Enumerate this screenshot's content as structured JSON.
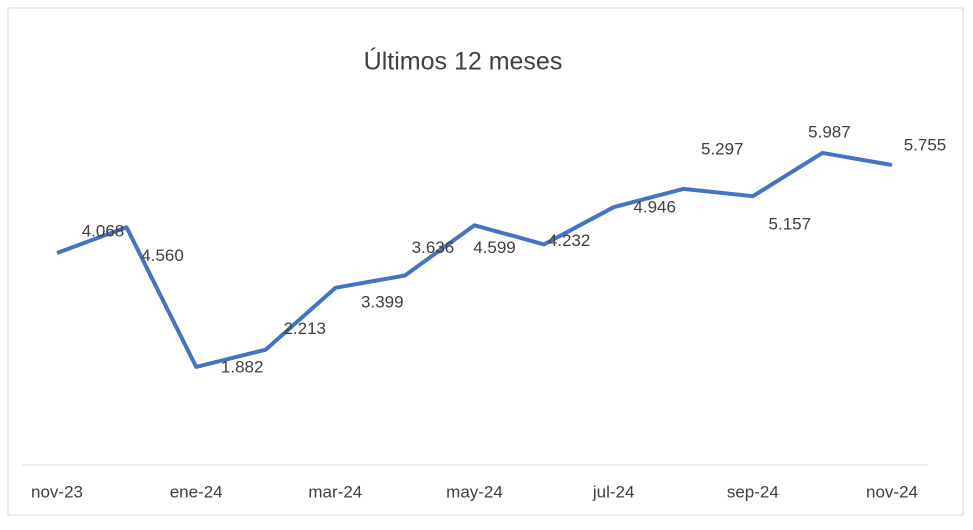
{
  "chart_data": {
    "type": "line",
    "title": "Últimos 12 meses",
    "categories": [
      "nov-23",
      null,
      "ene-24",
      null,
      "mar-24",
      null,
      "may-24",
      null,
      "jul-24",
      null,
      "sep-24",
      null,
      "nov-24"
    ],
    "series": [
      {
        "color": "#4472c4",
        "values": [
          4068,
          4560,
          1882,
          2213,
          3399,
          3636,
          4599,
          4232,
          4946,
          5297,
          5157,
          5987,
          5755
        ],
        "value_labels": [
          "4.068",
          "4.560",
          "1.882",
          "2.213",
          "3.399",
          "3.636",
          "4.599",
          "4.232",
          "4.946",
          "5.297",
          "5.157",
          "5.987",
          "5.755"
        ]
      }
    ],
    "ylim": [
      0,
      8000
    ]
  }
}
